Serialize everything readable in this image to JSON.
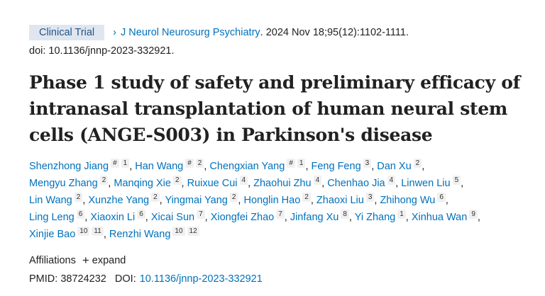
{
  "header": {
    "badge": "Clinical Trial",
    "journal": "J Neurol Neurosurg Psychiatry",
    "citation": ". 2024 Nov 18;95(12):1102-1111.",
    "doi": "doi: 10.1136/jnnp-2023-332921."
  },
  "title": [
    "Phase 1 study of safety and preliminary efficacy of",
    "intranasal transplantation of human neural stem",
    "cells (ANGE-S003) in Parkinson's disease"
  ],
  "author_lines": [
    [
      {
        "name": "Shenzhong Jiang",
        "sups": [
          "#",
          "1"
        ]
      },
      {
        "name": "Han Wang",
        "sups": [
          "#",
          "2"
        ]
      },
      {
        "name": "Chengxian Yang",
        "sups": [
          "#",
          "1"
        ]
      },
      {
        "name": "Feng Feng",
        "sups": [
          "3"
        ]
      },
      {
        "name": "Dan Xu",
        "sups": [
          "2"
        ]
      }
    ],
    [
      {
        "name": "Mengyu Zhang",
        "sups": [
          "2"
        ]
      },
      {
        "name": "Manqing Xie",
        "sups": [
          "2"
        ]
      },
      {
        "name": "Ruixue Cui",
        "sups": [
          "4"
        ]
      },
      {
        "name": "Zhaohui Zhu",
        "sups": [
          "4"
        ]
      },
      {
        "name": "Chenhao Jia",
        "sups": [
          "4"
        ]
      },
      {
        "name": "Linwen Liu",
        "sups": [
          "5"
        ]
      }
    ],
    [
      {
        "name": "Lin Wang",
        "sups": [
          "2"
        ]
      },
      {
        "name": "Xunzhe Yang",
        "sups": [
          "2"
        ]
      },
      {
        "name": "Yingmai Yang",
        "sups": [
          "2"
        ]
      },
      {
        "name": "Honglin Hao",
        "sups": [
          "2"
        ]
      },
      {
        "name": "Zhaoxi Liu",
        "sups": [
          "3"
        ]
      },
      {
        "name": "Zhihong Wu",
        "sups": [
          "6"
        ]
      }
    ],
    [
      {
        "name": "Ling Leng",
        "sups": [
          "6"
        ]
      },
      {
        "name": "Xiaoxin Li",
        "sups": [
          "6"
        ]
      },
      {
        "name": "Xicai Sun",
        "sups": [
          "7"
        ]
      },
      {
        "name": "Xiongfei Zhao",
        "sups": [
          "7"
        ]
      },
      {
        "name": "Jinfang Xu",
        "sups": [
          "8"
        ]
      },
      {
        "name": "Yi Zhang",
        "sups": [
          "1"
        ]
      },
      {
        "name": "Xinhua Wan",
        "sups": [
          "9"
        ]
      }
    ],
    [
      {
        "name": "Xinjie Bao",
        "sups": [
          "10",
          "11"
        ]
      },
      {
        "name": "Renzhi Wang",
        "sups": [
          "10",
          "12"
        ]
      }
    ]
  ],
  "affiliations": {
    "label": "Affiliations",
    "expand": "expand"
  },
  "ids": {
    "pmid_label": "PMID:",
    "pmid": "38724232",
    "doi_label": "DOI:",
    "doi": "10.1136/jnnp-2023-332921"
  }
}
